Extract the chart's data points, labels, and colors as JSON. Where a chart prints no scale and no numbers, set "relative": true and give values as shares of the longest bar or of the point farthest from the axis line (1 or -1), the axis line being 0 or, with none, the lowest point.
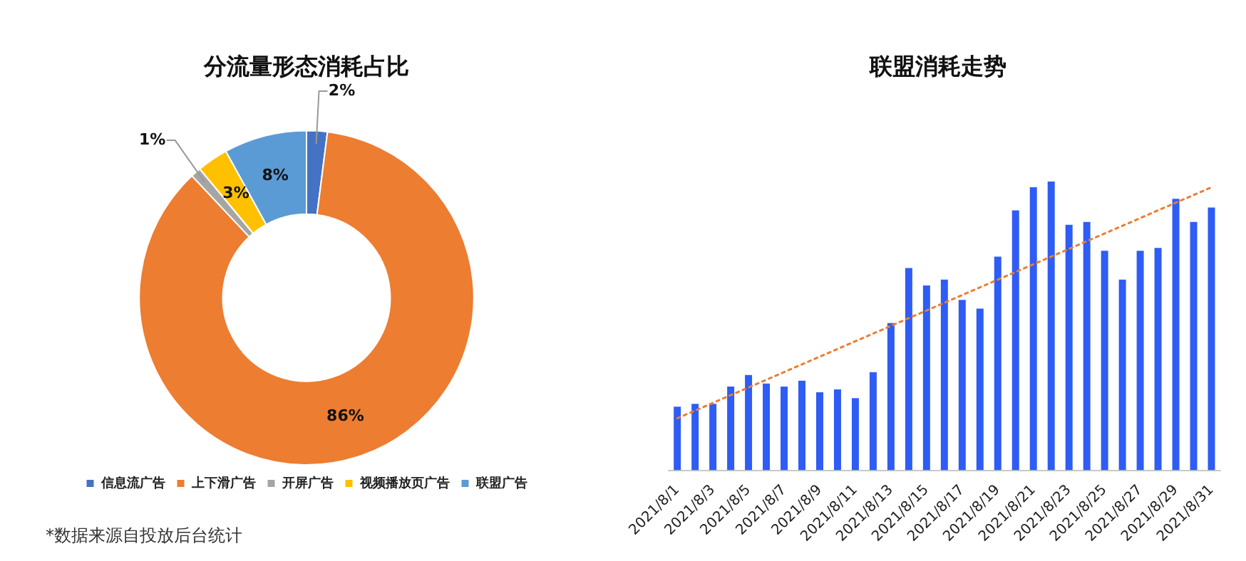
{
  "chart_data": [
    {
      "type": "donut",
      "title": "分流量形态消耗占比",
      "categories": [
        "信息流广告",
        "上下滑广告",
        "开屏广告",
        "视频播放页广告",
        "联盟广告"
      ],
      "values": [
        2,
        86,
        1,
        3,
        8
      ],
      "colors": [
        "#4472c4",
        "#ed7d31",
        "#a5a5a5",
        "#ffc000",
        "#5b9bd5"
      ],
      "value_labels": [
        "2%",
        "86%",
        "1%",
        "3%",
        "8%"
      ],
      "legend": "bottom",
      "annotations": [
        "*数据来源自投放后台统计"
      ]
    },
    {
      "type": "bar",
      "title": "联盟消耗走势",
      "relative": true,
      "tick_labels": "x",
      "legend": false,
      "grid": false,
      "categories": [
        "2021/8/1",
        null,
        "2021/8/3",
        null,
        "2021/8/5",
        null,
        "2021/8/7",
        null,
        "2021/8/9",
        null,
        "2021/8/11",
        null,
        "2021/8/13",
        null,
        "2021/8/15",
        null,
        "2021/8/17",
        null,
        "2021/8/19",
        null,
        "2021/8/21",
        null,
        "2021/8/23",
        null,
        "2021/8/25",
        null,
        "2021/8/27",
        null,
        "2021/8/29",
        null,
        "2021/8/31"
      ],
      "series": [
        {
          "color": "#2f5cf5",
          "values": [
            0.22,
            0.23,
            0.23,
            0.29,
            0.33,
            0.3,
            0.29,
            0.31,
            0.27,
            0.28,
            0.25,
            0.34,
            0.51,
            0.7,
            0.64,
            0.66,
            0.59,
            0.56,
            0.74,
            0.9,
            0.98,
            1,
            0.85,
            0.86,
            0.76,
            0.66,
            0.76,
            0.77,
            0.94,
            0.86,
            0.91
          ]
        },
        {
          "type": "line",
          "color": "#ed7d31",
          "line_style": "dotted",
          "marker": "none",
          "x": [
            "2021/8/1",
            "2021/8/31"
          ],
          "values": [
            0.18,
            0.98
          ]
        }
      ]
    }
  ]
}
